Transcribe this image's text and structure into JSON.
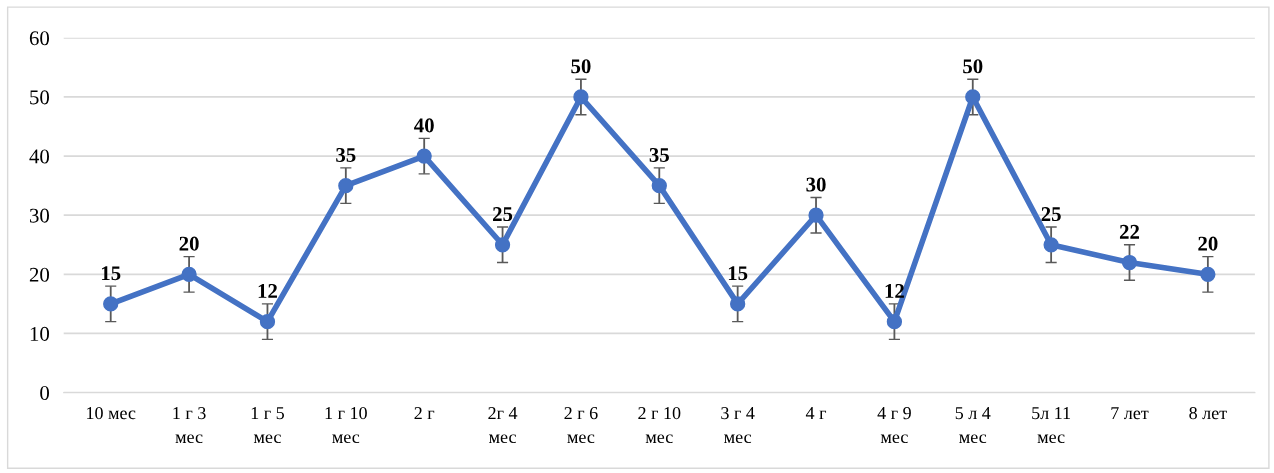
{
  "chart_data": {
    "type": "line",
    "categories": [
      "10 мес",
      "1 г 3\nмес",
      "1 г 5\nмес",
      "1 г 10\nмес",
      "2 г",
      "2г 4\nмес",
      "2 г 6\nмес",
      "2 г 10\nмес",
      "3 г 4\nмес",
      "4 г",
      "4 г 9\nмес",
      "5 л 4\nмес",
      "5л 11\nмес",
      "7 лет",
      "8 лет"
    ],
    "series": [
      {
        "color": "#4472c4",
        "values": [
          15,
          20,
          12,
          35,
          40,
          25,
          50,
          35,
          15,
          30,
          12,
          50,
          25,
          22,
          20
        ],
        "errors": [
          3,
          3,
          3,
          3,
          3,
          3,
          3,
          3,
          3,
          3,
          3,
          3,
          3,
          3,
          3
        ]
      }
    ],
    "ylim": [
      0,
      60
    ],
    "yticks": [
      0,
      10,
      20,
      30,
      40,
      50,
      60
    ],
    "grid": "y",
    "marker": "circle",
    "line_style": "solid",
    "data_labels": true,
    "legend": false
  }
}
